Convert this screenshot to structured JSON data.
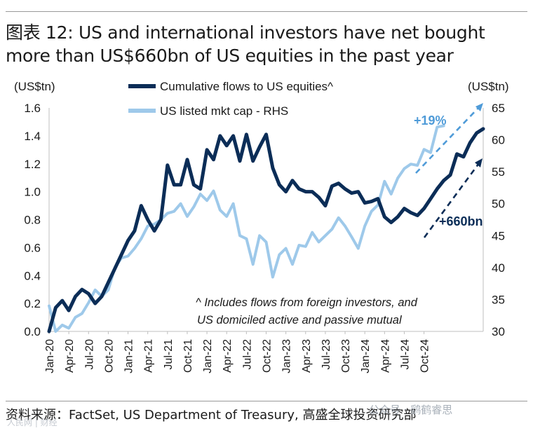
{
  "title": "图表 12: US and international investors have net bought more than US$660bn of US equities in the past year",
  "source": "资料来源：FactSet, US Department of Treasury, 高盛全球投资研究部",
  "watermark": "公众号 · 鹞鹤睿思",
  "watermark2": "人民网 | 财经",
  "colors": {
    "primary": "#0b2d57",
    "secondary": "#9ec9ea",
    "arrow_light": "#4f9bd8",
    "text": "#1a1a1a"
  },
  "chart_data": {
    "type": "line",
    "left_unit": "(US$tn)",
    "right_unit": "(US$tn)",
    "left_ylim": [
      0.0,
      1.6
    ],
    "left_ticks": [
      "0.0",
      "0.2",
      "0.4",
      "0.6",
      "0.8",
      "1.0",
      "1.2",
      "1.4",
      "1.6"
    ],
    "right_ylim": [
      30,
      65
    ],
    "right_ticks": [
      "30",
      "35",
      "40",
      "45",
      "50",
      "55",
      "60",
      "65"
    ],
    "x_tick_labels": [
      "Jan-20",
      "Apr-20",
      "Jul-20",
      "Oct-20",
      "Jan-21",
      "Apr-21",
      "Jul-21",
      "Oct-21",
      "Jan-22",
      "Apr-22",
      "Jul-22",
      "Oct-22",
      "Jan-23",
      "Apr-23",
      "Jul-23",
      "Oct-23",
      "Jan-24",
      "Apr-24",
      "Jul-24",
      "Oct-24"
    ],
    "series": [
      {
        "name": "Cumulative flows to US equities^",
        "axis": "left",
        "values": [
          0.0,
          0.17,
          0.22,
          0.15,
          0.25,
          0.3,
          0.27,
          0.2,
          0.25,
          0.35,
          0.45,
          0.55,
          0.65,
          0.72,
          0.9,
          0.8,
          0.72,
          0.8,
          1.19,
          1.05,
          1.05,
          1.23,
          1.05,
          1.02,
          1.3,
          1.23,
          1.4,
          1.33,
          1.4,
          1.22,
          1.41,
          1.22,
          1.32,
          1.41,
          1.17,
          1.05,
          1.0,
          1.08,
          1.02,
          1.0,
          1.0,
          0.96,
          0.9,
          1.04,
          1.06,
          1.02,
          0.99,
          1.0,
          0.92,
          0.93,
          0.95,
          0.82,
          0.78,
          0.82,
          0.88,
          0.85,
          0.83,
          0.88,
          0.95,
          1.02,
          1.08,
          1.12,
          1.27,
          1.25,
          1.35,
          1.42,
          1.45
        ]
      },
      {
        "name": "US listed mkt cap - RHS",
        "axis": "right",
        "values": [
          34,
          30,
          31,
          30.5,
          32.2,
          32.8,
          34.5,
          36.5,
          35.5,
          36.5,
          40,
          41.5,
          41.8,
          43,
          44.5,
          46.5,
          46.8,
          47.5,
          48.5,
          48.8,
          50,
          48,
          49.5,
          51.5,
          50.5,
          52,
          49,
          48,
          50,
          45,
          44.5,
          40.5,
          45,
          44,
          38.5,
          42,
          43,
          40.5,
          43.5,
          43.3,
          45.5,
          44,
          45,
          46,
          47.8,
          46.5,
          44.8,
          43,
          46.5,
          48.8,
          49.8,
          53.5,
          51.5,
          54,
          55.5,
          56.2,
          56,
          58.5,
          58,
          62,
          62.2
        ]
      }
    ],
    "annotations": {
      "pct": "+19%",
      "flows": "+660bn",
      "footnote_line1": "^ Includes flows from foreign investors, and",
      "footnote_line2": "US domiciled active and passive mutual"
    }
  }
}
